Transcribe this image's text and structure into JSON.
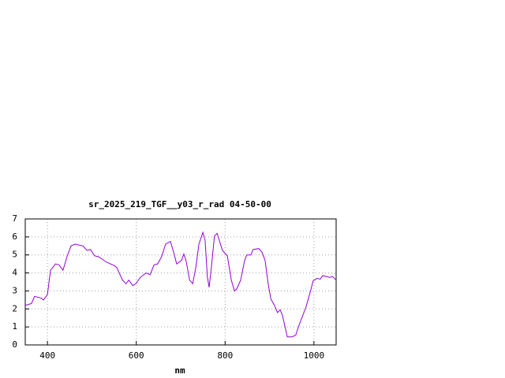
{
  "chart_data": {
    "type": "line",
    "title": "sr_2025_219_TGF__y03_r_rad 04-50-00",
    "x_label": "nm",
    "x": [
      350,
      364,
      371,
      386,
      391,
      400,
      403,
      407,
      418,
      426,
      435,
      444,
      453,
      462,
      480,
      489,
      497,
      506,
      515,
      533,
      551,
      556,
      569,
      577,
      583,
      592,
      599,
      609,
      622,
      631,
      640,
      648,
      657,
      666,
      677,
      684,
      691,
      702,
      707,
      712,
      720,
      727,
      734,
      741,
      750,
      755,
      760,
      764,
      769,
      776,
      782,
      787,
      794,
      805,
      814,
      821,
      826,
      835,
      844,
      849,
      858,
      863,
      876,
      883,
      890,
      897,
      903,
      911,
      918,
      924,
      929,
      935,
      940,
      951,
      959,
      965,
      975,
      982,
      993,
      998,
      1007,
      1014,
      1020,
      1035,
      1042,
      1050
    ],
    "series": [
      {
        "color": "#9400d3",
        "values": [
          2.2,
          2.3,
          2.7,
          2.6,
          2.5,
          2.8,
          3.4,
          4.15,
          4.5,
          4.45,
          4.15,
          4.9,
          5.5,
          5.6,
          5.5,
          5.25,
          5.3,
          4.95,
          4.9,
          4.6,
          4.4,
          4.3,
          3.6,
          3.4,
          3.6,
          3.3,
          3.4,
          3.75,
          4.0,
          3.9,
          4.45,
          4.5,
          4.9,
          5.6,
          5.75,
          5.15,
          4.5,
          4.7,
          5.05,
          4.7,
          3.6,
          3.4,
          4.3,
          5.6,
          6.25,
          5.8,
          3.8,
          3.2,
          4.3,
          6.05,
          6.2,
          5.8,
          5.25,
          4.95,
          3.6,
          3.0,
          3.1,
          3.6,
          4.7,
          5.0,
          5.0,
          5.3,
          5.35,
          5.15,
          4.7,
          3.4,
          2.55,
          2.2,
          1.8,
          1.95,
          1.65,
          1.0,
          0.45,
          0.45,
          0.55,
          1.0,
          1.65,
          2.1,
          3.05,
          3.55,
          3.7,
          3.65,
          3.85,
          3.75,
          3.8,
          3.6
        ]
      }
    ],
    "xlim": [
      350,
      1050
    ],
    "xticks": [
      400,
      600,
      800,
      1000
    ],
    "ylim": [
      0,
      7
    ],
    "yticks": [
      0,
      1,
      2,
      3,
      4,
      5,
      6,
      7
    ],
    "grid": true
  }
}
